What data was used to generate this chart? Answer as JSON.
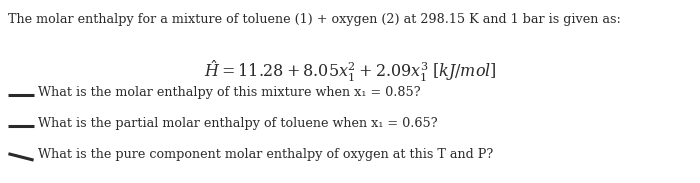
{
  "background_color": "#ffffff",
  "text_color": "#2a2a2a",
  "line1": "The molar enthalpy for a mixture of toluene (1) + oxygen (2) at 298.15 K and 1 bar is given as:",
  "bullet1": "What is the molar enthalpy of this mixture when x₁ = 0.85?",
  "bullet2": "What is the partial molar enthalpy of toluene when x₁ = 0.65?",
  "bullet3": "What is the pure component molar enthalpy of oxygen at this T and P?",
  "figwidth": 7.0,
  "figheight": 1.83,
  "dpi": 100
}
